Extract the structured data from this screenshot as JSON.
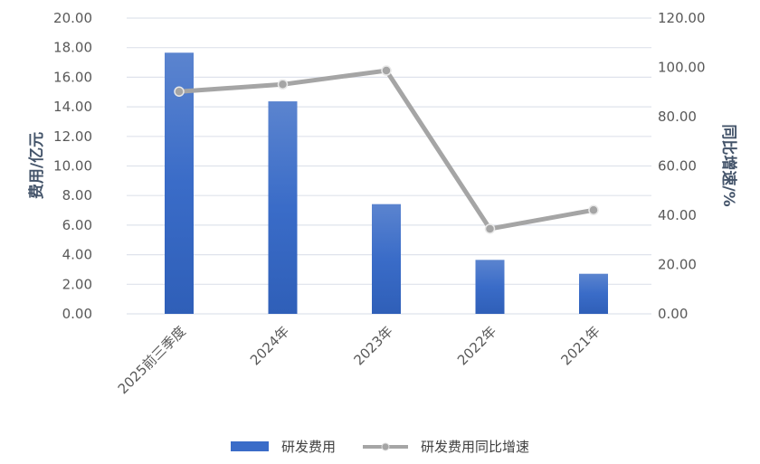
{
  "chart_data": {
    "type": "bar+line",
    "categories": [
      "2025前三季度",
      "2024年",
      "2023年",
      "2022年",
      "2021年"
    ],
    "series": [
      {
        "name": "研发费用",
        "type": "bar",
        "axis": "left",
        "values": [
          17.66,
          14.37,
          7.42,
          3.65,
          2.71
        ],
        "color": "#3a6cc8"
      },
      {
        "name": "研发费用同比增速",
        "type": "line",
        "axis": "right",
        "values": [
          90.2,
          93.1,
          98.7,
          34.5,
          42.1
        ],
        "color": "#a5a5a5"
      }
    ],
    "ylabel": "费用/亿元",
    "y2label": "同比增速/%",
    "ylim": [
      0,
      20
    ],
    "y2lim": [
      0,
      120
    ],
    "yticks": [
      "0.00",
      "2.00",
      "4.00",
      "6.00",
      "8.00",
      "10.00",
      "12.00",
      "14.00",
      "16.00",
      "18.00",
      "20.00"
    ],
    "y2ticks": [
      "0.00",
      "20.00",
      "40.00",
      "60.00",
      "80.00",
      "100.00",
      "120.00"
    ],
    "grid": true,
    "legend": "bottom"
  }
}
